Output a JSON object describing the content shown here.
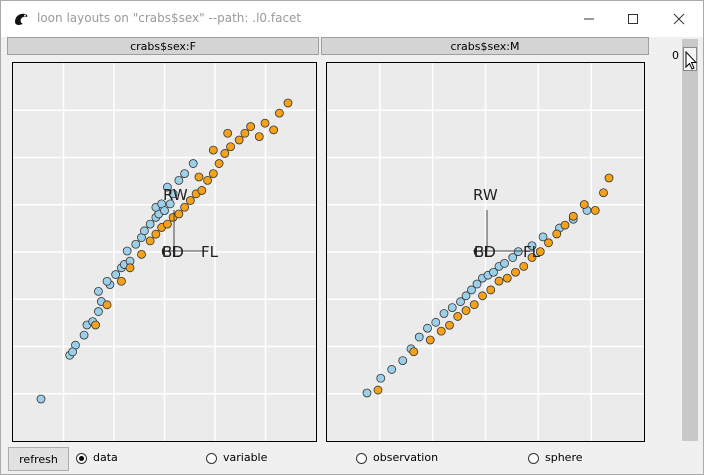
{
  "window": {
    "title": "loon layouts on \"crabs$sex\" --path: .l0.facet",
    "icon": "loon-bird-icon"
  },
  "facets": [
    {
      "header": "crabs$sex:F"
    },
    {
      "header": "crabs$sex:M"
    }
  ],
  "slider": {
    "value_label": "0"
  },
  "bottom": {
    "refresh_label": "refresh",
    "radio_options": [
      {
        "label": "data",
        "selected": true
      },
      {
        "label": "variable",
        "selected": false
      },
      {
        "label": "observation",
        "selected": false
      },
      {
        "label": "sphere",
        "selected": false
      }
    ]
  },
  "colors": {
    "point_blue": "#9ccfe8",
    "point_orange": "#f5a11a",
    "plot_bg": "#ebebeb",
    "grid": "#ffffff"
  },
  "chart_data": [
    {
      "type": "scatter",
      "facet": "crabs$sex:F",
      "axis_labels": [
        "RW",
        "FL",
        "CL",
        "BD"
      ],
      "series": [
        {
          "name": "blue",
          "color": "#9ccfe8",
          "points": [
            [
              1.0,
              1.0
            ],
            [
              2.0,
              2.3
            ],
            [
              2.2,
              2.6
            ],
            [
              2.1,
              2.4
            ],
            [
              2.5,
              2.9
            ],
            [
              2.6,
              3.2
            ],
            [
              2.8,
              3.3
            ],
            [
              3.0,
              3.6
            ],
            [
              3.1,
              3.9
            ],
            [
              3.0,
              4.2
            ],
            [
              3.4,
              4.4
            ],
            [
              3.3,
              4.5
            ],
            [
              3.6,
              4.7
            ],
            [
              3.8,
              4.9
            ],
            [
              3.9,
              5.0
            ],
            [
              4.1,
              5.1
            ],
            [
              4.0,
              5.4
            ],
            [
              4.3,
              5.6
            ],
            [
              4.5,
              5.8
            ],
            [
              4.6,
              6.0
            ],
            [
              4.8,
              6.2
            ],
            [
              5.0,
              6.4
            ],
            [
              5.1,
              6.5
            ],
            [
              5.0,
              6.7
            ],
            [
              5.2,
              6.8
            ],
            [
              5.3,
              6.6
            ],
            [
              5.5,
              6.8
            ],
            [
              5.6,
              7.1
            ],
            [
              5.4,
              7.3
            ],
            [
              5.8,
              7.5
            ],
            [
              6.0,
              7.7
            ],
            [
              6.3,
              8.0
            ]
          ]
        },
        {
          "name": "orange",
          "color": "#f5a11a",
          "points": [
            [
              2.9,
              3.2
            ],
            [
              3.3,
              3.8
            ],
            [
              3.8,
              4.5
            ],
            [
              4.1,
              4.9
            ],
            [
              4.5,
              5.3
            ],
            [
              4.8,
              5.7
            ],
            [
              5.0,
              5.9
            ],
            [
              5.2,
              6.1
            ],
            [
              5.4,
              6.2
            ],
            [
              5.6,
              6.4
            ],
            [
              5.8,
              6.5
            ],
            [
              6.0,
              6.7
            ],
            [
              6.2,
              6.9
            ],
            [
              6.4,
              7.1
            ],
            [
              6.6,
              7.2
            ],
            [
              6.8,
              7.5
            ],
            [
              7.0,
              7.7
            ],
            [
              7.2,
              8.0
            ],
            [
              7.4,
              8.3
            ],
            [
              7.6,
              8.5
            ],
            [
              7.9,
              8.7
            ],
            [
              8.1,
              8.9
            ],
            [
              8.3,
              9.1
            ],
            [
              8.6,
              8.8
            ],
            [
              8.8,
              9.2
            ],
            [
              9.1,
              9.0
            ],
            [
              9.3,
              9.5
            ],
            [
              9.6,
              9.8
            ],
            [
              7.0,
              8.4
            ],
            [
              7.5,
              8.9
            ],
            [
              6.5,
              7.6
            ]
          ]
        }
      ]
    },
    {
      "type": "scatter",
      "facet": "crabs$sex:M",
      "axis_labels": [
        "RW",
        "FL",
        "CL",
        "BD"
      ],
      "series": [
        {
          "name": "blue",
          "color": "#9ccfe8",
          "points": [
            [
              1.0,
              1.0
            ],
            [
              1.5,
              1.5
            ],
            [
              1.9,
              1.8
            ],
            [
              2.3,
              2.1
            ],
            [
              2.6,
              2.5
            ],
            [
              2.9,
              2.9
            ],
            [
              3.2,
              3.2
            ],
            [
              3.5,
              3.4
            ],
            [
              3.8,
              3.7
            ],
            [
              4.1,
              3.9
            ],
            [
              4.4,
              4.1
            ],
            [
              4.6,
              4.3
            ],
            [
              4.8,
              4.5
            ],
            [
              5.0,
              4.7
            ],
            [
              5.2,
              4.9
            ],
            [
              5.4,
              5.0
            ],
            [
              5.6,
              5.1
            ],
            [
              5.8,
              5.3
            ],
            [
              6.0,
              5.4
            ],
            [
              6.3,
              5.6
            ],
            [
              6.5,
              5.8
            ],
            [
              7.0,
              6.0
            ],
            [
              7.4,
              6.3
            ],
            [
              8.0,
              6.6
            ],
            [
              8.5,
              6.9
            ],
            [
              9.0,
              7.2
            ]
          ]
        },
        {
          "name": "orange",
          "color": "#f5a11a",
          "points": [
            [
              1.4,
              1.1
            ],
            [
              2.7,
              2.4
            ],
            [
              3.3,
              2.8
            ],
            [
              3.7,
              3.1
            ],
            [
              4.0,
              3.3
            ],
            [
              4.3,
              3.6
            ],
            [
              4.6,
              3.8
            ],
            [
              4.9,
              4.0
            ],
            [
              5.2,
              4.3
            ],
            [
              5.5,
              4.5
            ],
            [
              5.8,
              4.8
            ],
            [
              6.1,
              4.9
            ],
            [
              6.4,
              5.1
            ],
            [
              6.7,
              5.3
            ],
            [
              7.0,
              5.6
            ],
            [
              7.3,
              5.8
            ],
            [
              7.6,
              6.1
            ],
            [
              7.9,
              6.4
            ],
            [
              8.2,
              6.7
            ],
            [
              8.5,
              7.0
            ],
            [
              8.9,
              7.4
            ],
            [
              9.3,
              7.2
            ],
            [
              9.6,
              7.8
            ],
            [
              9.8,
              8.3
            ]
          ]
        }
      ]
    }
  ]
}
